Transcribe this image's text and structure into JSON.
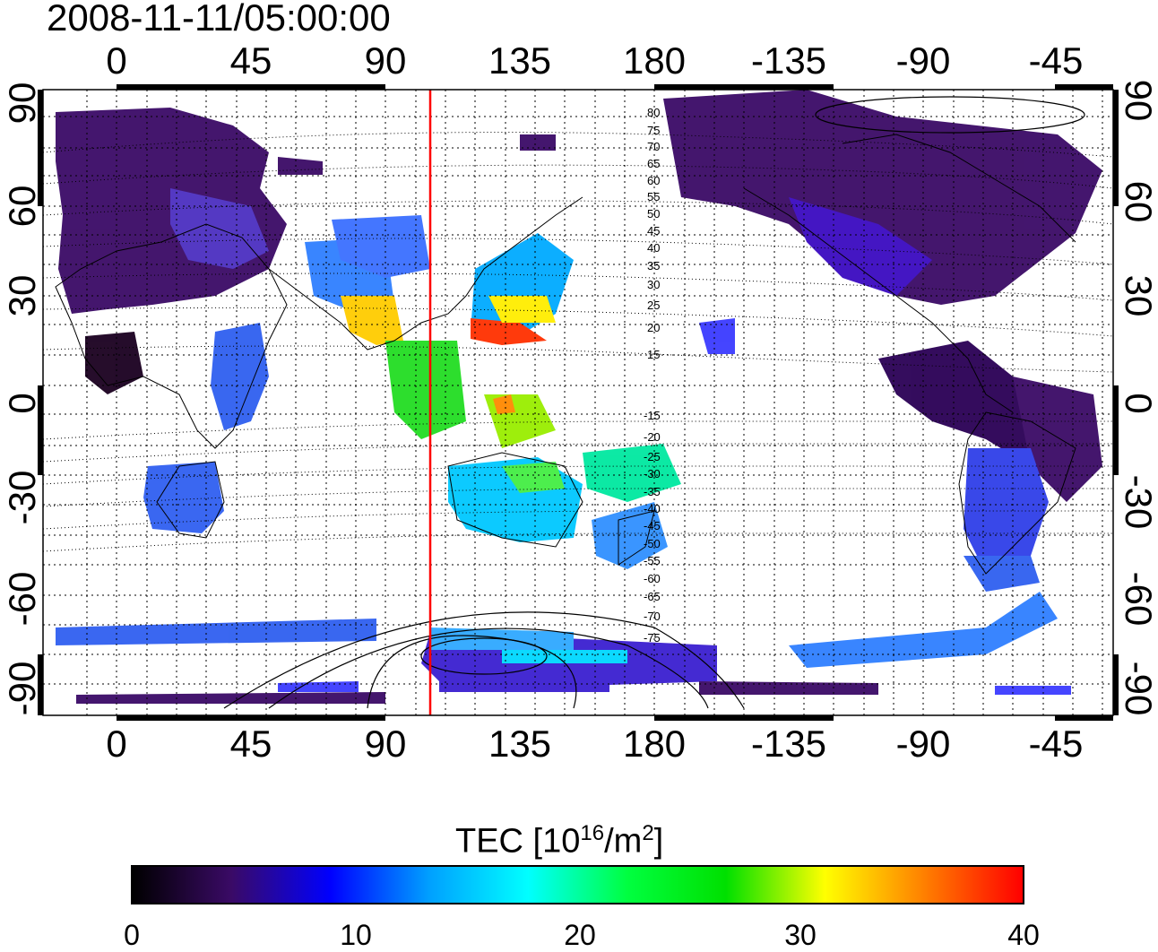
{
  "title": "2008-11-11/05:00:00",
  "map": {
    "top_lon_ticks": [
      "0",
      "45",
      "90",
      "135",
      "180",
      "-135",
      "-90",
      "-45"
    ],
    "bottom_lon_ticks": [
      "0",
      "45",
      "90",
      "135",
      "180",
      "-135",
      "-90",
      "-45"
    ],
    "left_lat_ticks": [
      "90",
      "60",
      "30",
      "0",
      "-30",
      "-60",
      "-90"
    ],
    "right_lat_ticks": [
      "90",
      "60",
      "30",
      "0",
      "-30",
      "-60",
      "-90"
    ],
    "contour_labels_upper": [
      "80",
      "75",
      "70",
      "65",
      "60",
      "55",
      "50",
      "45",
      "40",
      "35",
      "30",
      "25",
      "20",
      "15"
    ],
    "contour_labels_lower": [
      "-15",
      "-20",
      "-25",
      "-30",
      "-35",
      "-40",
      "-45",
      "-50",
      "-55",
      "-60",
      "-65",
      "-70",
      "-75"
    ],
    "marker_line_color": "#ff0000"
  },
  "colorbar": {
    "title_prefix": "TEC  [10",
    "title_exp1": "16",
    "title_mid": "/m",
    "title_exp2": "2",
    "title_suffix": "]",
    "ticks": [
      "0",
      "10",
      "20",
      "30",
      "40"
    ],
    "range": [
      0,
      40
    ],
    "colors": [
      "#000000",
      "#3a0a66",
      "#0000ff",
      "#00a0ff",
      "#00ffff",
      "#00ff40",
      "#00e000",
      "#ffff00",
      "#ff8000",
      "#ff0000"
    ]
  }
}
